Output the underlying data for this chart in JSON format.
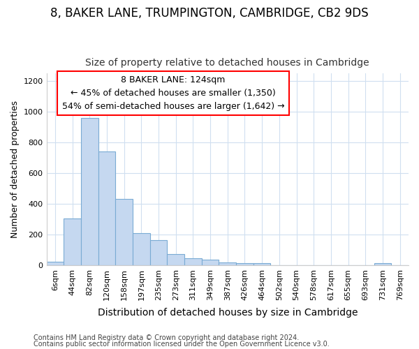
{
  "title1": "8, BAKER LANE, TRUMPINGTON, CAMBRIDGE, CB2 9DS",
  "title2": "Size of property relative to detached houses in Cambridge",
  "xlabel": "Distribution of detached houses by size in Cambridge",
  "ylabel": "Number of detached properties",
  "categories": [
    "6sqm",
    "44sqm",
    "82sqm",
    "120sqm",
    "158sqm",
    "197sqm",
    "235sqm",
    "273sqm",
    "311sqm",
    "349sqm",
    "387sqm",
    "426sqm",
    "464sqm",
    "502sqm",
    "540sqm",
    "578sqm",
    "617sqm",
    "655sqm",
    "693sqm",
    "731sqm",
    "769sqm"
  ],
  "values": [
    25,
    305,
    960,
    740,
    430,
    210,
    165,
    75,
    47,
    35,
    18,
    14,
    12,
    0,
    0,
    0,
    0,
    0,
    0,
    12,
    0
  ],
  "bar_color": "#c5d8f0",
  "bar_edge_color": "#7aabd4",
  "annotation_box_text": "8 BAKER LANE: 124sqm\n← 45% of detached houses are smaller (1,350)\n54% of semi-detached houses are larger (1,642) →",
  "footnote1": "Contains HM Land Registry data © Crown copyright and database right 2024.",
  "footnote2": "Contains public sector information licensed under the Open Government Licence v3.0.",
  "ylim": [
    0,
    1250
  ],
  "background_color": "#ffffff",
  "plot_bg_color": "#ffffff",
  "grid_color": "#d0dff0",
  "title_fontsize": 12,
  "subtitle_fontsize": 10,
  "ylabel_fontsize": 9,
  "xlabel_fontsize": 10,
  "tick_fontsize": 8,
  "annot_fontsize": 9,
  "footnote_fontsize": 7
}
